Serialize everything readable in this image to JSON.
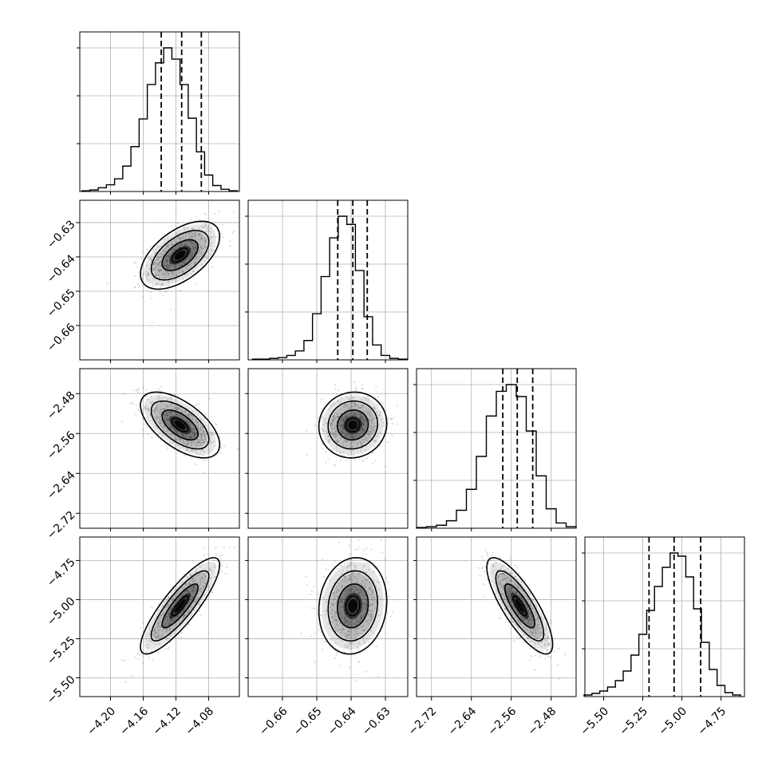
{
  "chart_data": {
    "type": "corner",
    "title": "",
    "parameters": [
      {
        "index": 0,
        "ticks": [
          "−4.20",
          "−4.16",
          "−4.12",
          "−4.08"
        ],
        "tick_values": [
          -4.2,
          -4.16,
          -4.12,
          -4.08
        ],
        "range": [
          -4.2375,
          -4.0425
        ],
        "mean": -4.115,
        "sd": 0.022,
        "quantiles": [
          -4.138,
          -4.113,
          -4.089
        ],
        "hist_bins": [
          -4.23,
          -4.22,
          -4.21,
          -4.2,
          -4.19,
          -4.18,
          -4.17,
          -4.16,
          -4.15,
          -4.14,
          -4.13,
          -4.12,
          -4.11,
          -4.1,
          -4.09,
          -4.08,
          -4.07,
          -4.06,
          -4.05
        ],
        "hist_counts": [
          1,
          2,
          5,
          9,
          17,
          34,
          60,
          97,
          143,
          172,
          192,
          177,
          143,
          98,
          53,
          22,
          8,
          3,
          1
        ]
      },
      {
        "index": 1,
        "ticks": [
          "−0.66",
          "−0.65",
          "−0.64",
          "−0.63"
        ],
        "tick_values": [
          -0.66,
          -0.65,
          -0.64,
          -0.63
        ],
        "range": [
          -0.67,
          -0.6235
        ],
        "mean": -0.6395,
        "sd": 0.0045,
        "quantiles": [
          -0.6439,
          -0.6395,
          -0.6353
        ],
        "hist_bins": [
          -0.6675,
          -0.665,
          -0.6625,
          -0.66,
          -0.6575,
          -0.655,
          -0.6525,
          -0.65,
          -0.6475,
          -0.645,
          -0.6425,
          -0.64,
          -0.6375,
          -0.635,
          -0.6325,
          -0.63,
          -0.6275,
          -0.625
        ],
        "hist_counts": [
          1,
          1,
          2,
          3,
          6,
          12,
          26,
          62,
          112,
          164,
          193,
          182,
          120,
          58,
          20,
          6,
          2,
          1
        ]
      },
      {
        "index": 2,
        "ticks": [
          "−2.72",
          "−2.64",
          "−2.56",
          "−2.48"
        ],
        "tick_values": [
          -2.72,
          -2.64,
          -2.56,
          -2.48
        ],
        "range": [
          -2.75,
          -2.43
        ],
        "mean": -2.543,
        "sd": 0.03,
        "quantiles": [
          -2.577,
          -2.548,
          -2.517
        ],
        "hist_bins": [
          -2.74,
          -2.72,
          -2.7,
          -2.68,
          -2.66,
          -2.64,
          -2.62,
          -2.6,
          -2.58,
          -2.56,
          -2.54,
          -2.52,
          -2.5,
          -2.48,
          -2.46,
          -2.44
        ],
        "hist_counts": [
          1,
          2,
          4,
          10,
          24,
          52,
          96,
          150,
          183,
          192,
          176,
          130,
          70,
          26,
          7,
          2
        ]
      },
      {
        "index": 3,
        "ticks": [
          "−5.50",
          "−5.25",
          "−5.00",
          "−4.75"
        ],
        "tick_values": [
          -5.5,
          -5.25,
          -5.0,
          -4.75
        ],
        "range": [
          -5.62,
          -4.6
        ],
        "mean": -5.04,
        "sd": 0.14,
        "quantiles": [
          -5.21,
          -5.05,
          -4.88
        ],
        "hist_bins": [
          -5.6,
          -5.55,
          -5.5,
          -5.45,
          -5.4,
          -5.35,
          -5.3,
          -5.25,
          -5.2,
          -5.15,
          -5.1,
          -5.05,
          -5.0,
          -4.95,
          -4.9,
          -4.85,
          -4.8,
          -4.75,
          -4.7,
          -4.65
        ],
        "hist_counts": [
          2,
          4,
          7,
          12,
          20,
          32,
          52,
          78,
          108,
          138,
          162,
          180,
          176,
          150,
          110,
          68,
          34,
          14,
          5,
          2
        ]
      }
    ],
    "correlations": {
      "1-0": 0.55,
      "2-0": -0.6,
      "2-1": 0.05,
      "3-0": 0.85,
      "3-1": 0.1,
      "3-2": -0.8
    },
    "histogram_yticks_unlabeled": true,
    "grid": true,
    "colors": {
      "line": "#000000",
      "scatter": "#888888",
      "density_fill": "#000000"
    }
  }
}
